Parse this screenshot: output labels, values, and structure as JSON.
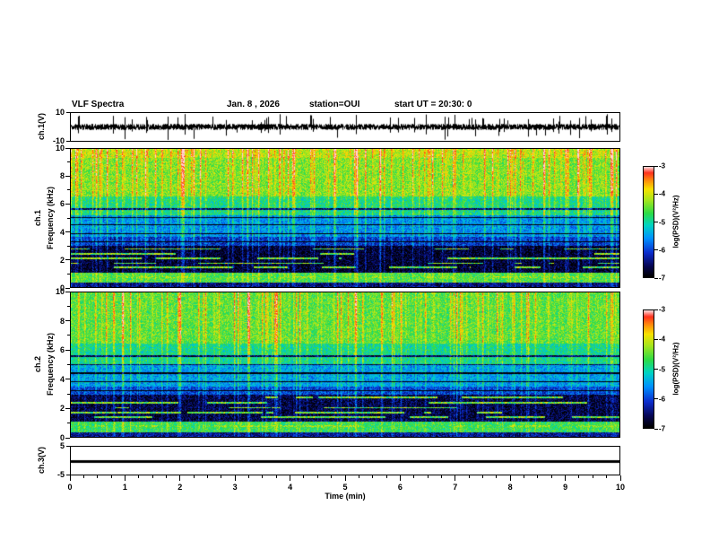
{
  "header": {
    "title": "VLF Spectra",
    "date": "Jan. 8  , 2026",
    "station": "station=OUI",
    "start_ut": "start UT  =   20:30: 0"
  },
  "panels": {
    "ch1_wave": {
      "ylabel": "ch.1(V)",
      "ytop": "10",
      "ybottom": "-10"
    },
    "ch1_spec": {
      "channel": "ch.1",
      "ylabel": "Frequency (kHz)",
      "yticks": [
        "10",
        "8",
        "6",
        "4",
        "2",
        "0"
      ]
    },
    "ch2_spec": {
      "channel": "ch.2",
      "ylabel": "Frequency (kHz)",
      "yticks": [
        "10",
        "8",
        "6",
        "4",
        "2",
        "0"
      ]
    },
    "ch3_wave": {
      "ylabel": "ch.3(V)",
      "ytop": "5",
      "ybottom": "-5"
    }
  },
  "xaxis": {
    "label": "Time (min)",
    "range_min": [
      0,
      10
    ],
    "ticks": [
      "0",
      "1",
      "2",
      "3",
      "4",
      "5",
      "6",
      "7",
      "8",
      "9",
      "10"
    ]
  },
  "colorbar": {
    "label": "log(PSD)(V²/Hz)",
    "ticks": [
      "-3",
      "-4",
      "-5",
      "-6",
      "-7"
    ],
    "value_range": [
      -7,
      -3
    ]
  },
  "chart_data": [
    {
      "id": "ch1_waveform",
      "type": "line",
      "title": "ch.1 raw amplitude vs time",
      "xlabel": "Time (min)",
      "ylabel": "ch.1(V)",
      "x_range": [
        0,
        10
      ],
      "ylim": [
        -10,
        10
      ],
      "yticks": [
        10,
        -10
      ],
      "baseline_v": 0,
      "noise_amplitude_v": 2.2,
      "spike_amplitude_v": [
        4,
        9.5
      ],
      "spike_count": 55,
      "seed": 11
    },
    {
      "id": "ch1_spectrogram",
      "type": "heatmap",
      "title": "ch.1 VLF spectrogram",
      "xlabel": "Time (min)",
      "ylabel": "Frequency (kHz)",
      "x_range": [
        0,
        10
      ],
      "y_range_khz": [
        0,
        10
      ],
      "yticks": [
        0,
        2,
        4,
        6,
        8,
        10
      ],
      "value_range_log_psd": [
        -7,
        -3
      ],
      "colorbar_label": "log(PSD)(V²/Hz)",
      "colorbar_ticks": [
        -3,
        -4,
        -5,
        -6,
        -7
      ],
      "band_profile": [
        {
          "f_khz": [
            0,
            0.3
          ],
          "level": -6.5
        },
        {
          "f_khz": [
            0.3,
            1.0
          ],
          "level": -4.6
        },
        {
          "f_khz": [
            1.0,
            3.0
          ],
          "level": -6.8
        },
        {
          "f_khz": [
            3.0,
            3.6
          ],
          "level": -6.1
        },
        {
          "f_khz": [
            3.6,
            5.2
          ],
          "level": -5.6
        },
        {
          "f_khz": [
            5.2,
            6.6
          ],
          "level": -4.9
        },
        {
          "f_khz": [
            6.6,
            9.4
          ],
          "level": -4.35
        },
        {
          "f_khz": [
            9.4,
            10.01
          ],
          "level": -4.1
        }
      ],
      "bright_lines_khz": [
        0.7,
        1.4,
        1.7,
        2.05,
        2.4,
        2.75
      ],
      "dark_lines_khz": [
        3.25,
        3.85,
        4.5,
        5.05,
        5.65
      ],
      "streak_density": 0.16,
      "streak_gain": 1.0,
      "noise": 0.45,
      "seed": 23
    },
    {
      "id": "ch2_spectrogram",
      "type": "heatmap",
      "title": "ch.2 VLF spectrogram",
      "xlabel": "Time (min)",
      "ylabel": "Frequency (kHz)",
      "x_range": [
        0,
        10
      ],
      "y_range_khz": [
        0,
        10
      ],
      "yticks": [
        0,
        2,
        4,
        6,
        8,
        10
      ],
      "value_range_log_psd": [
        -7,
        -3
      ],
      "colorbar_label": "log(PSD)(V²/Hz)",
      "colorbar_ticks": [
        -3,
        -4,
        -5,
        -6,
        -7
      ],
      "band_profile": [
        {
          "f_khz": [
            0,
            0.3
          ],
          "level": -6.4
        },
        {
          "f_khz": [
            0.3,
            1.0
          ],
          "level": -4.7
        },
        {
          "f_khz": [
            1.0,
            2.9
          ],
          "level": -6.7
        },
        {
          "f_khz": [
            2.9,
            3.5
          ],
          "level": -6.0
        },
        {
          "f_khz": [
            3.5,
            5.0
          ],
          "level": -5.5
        },
        {
          "f_khz": [
            5.0,
            6.5
          ],
          "level": -4.95
        },
        {
          "f_khz": [
            6.5,
            10.01
          ],
          "level": -4.5
        }
      ],
      "bright_lines_khz": [
        0.7,
        1.35,
        1.65,
        2.0,
        2.35,
        2.7
      ],
      "dark_lines_khz": [
        3.2,
        3.8,
        4.4,
        5.0,
        5.6
      ],
      "streak_density": 0.15,
      "streak_gain": 0.95,
      "noise": 0.45,
      "seed": 57
    },
    {
      "id": "ch3_waveform",
      "type": "line",
      "title": "ch.3 raw amplitude vs time",
      "xlabel": "Time (min)",
      "ylabel": "ch.3(V)",
      "x_range": [
        0,
        10
      ],
      "ylim": [
        -5,
        5
      ],
      "yticks": [
        5,
        -5
      ],
      "constant_value_v": 0
    }
  ]
}
